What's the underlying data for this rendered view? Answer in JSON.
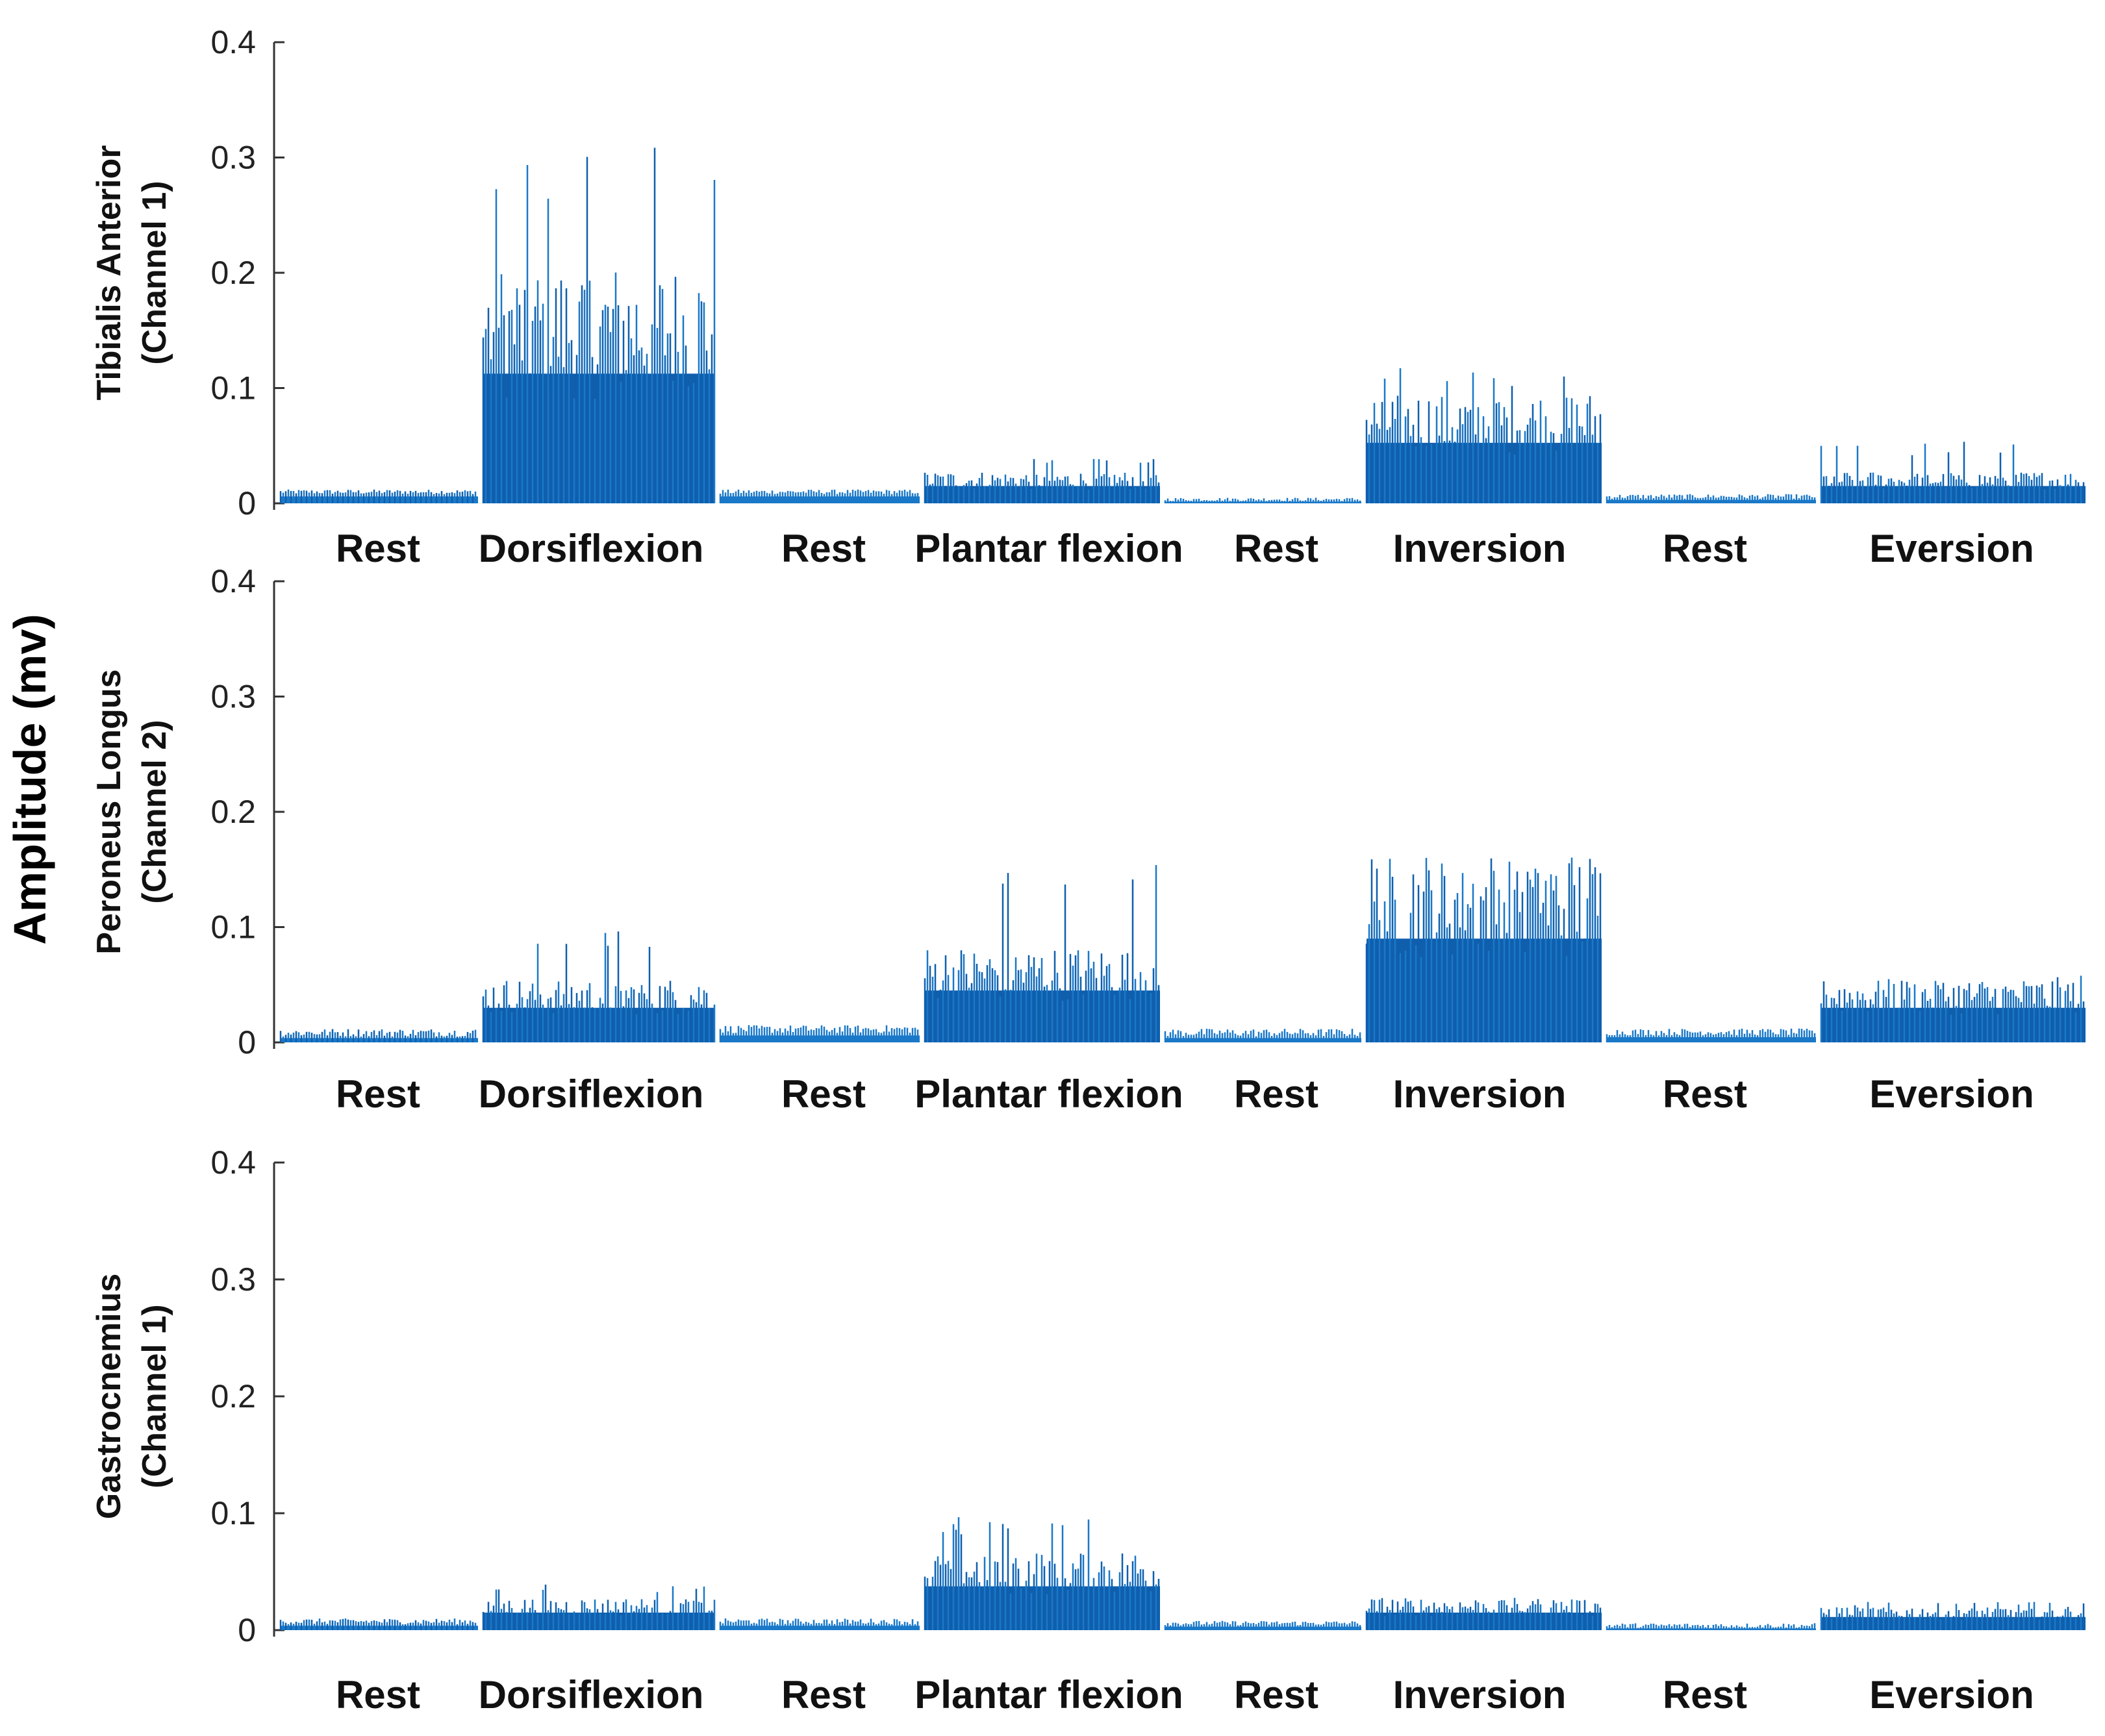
{
  "global_ylabel": "Amplitude (mv)",
  "colors": {
    "signal": "#1a78c8",
    "signal_dark": "#0f5fad",
    "axis": "#333333"
  },
  "chart_data": [
    {
      "type": "bar",
      "title": "",
      "ylabel_line1": "Tibialis Anterior",
      "ylabel_line2": "(Channel 1)",
      "ylim": [
        0,
        0.4
      ],
      "yticks": [
        "0",
        "0.1",
        "0.2",
        "0.3",
        "0.4"
      ],
      "ytick_values": [
        0,
        0.1,
        0.2,
        0.3,
        0.4
      ],
      "segments": [
        {
          "label": "Rest",
          "mean": 0.008,
          "peak": 0.012
        },
        {
          "label": "Dorsiflexion",
          "mean": 0.15,
          "peak": 0.33
        },
        {
          "label": "Rest",
          "mean": 0.008,
          "peak": 0.012
        },
        {
          "label": "Plantar flexion",
          "mean": 0.02,
          "peak": 0.04
        },
        {
          "label": "Rest",
          "mean": 0.002,
          "peak": 0.005
        },
        {
          "label": "Inversion",
          "mean": 0.07,
          "peak": 0.118
        },
        {
          "label": "Rest",
          "mean": 0.004,
          "peak": 0.008
        },
        {
          "label": "Eversion",
          "mean": 0.02,
          "peak": 0.055
        }
      ]
    },
    {
      "type": "bar",
      "title": "",
      "ylabel_line1": "Peroneus Longus",
      "ylabel_line2": "(Channel 2)",
      "ylim": [
        0,
        0.4
      ],
      "yticks": [
        "0",
        "0.1",
        "0.2",
        "0.3",
        "0.4"
      ],
      "ytick_values": [
        0,
        0.1,
        0.2,
        0.3,
        0.4
      ],
      "segments": [
        {
          "label": "Rest",
          "mean": 0.005,
          "peak": 0.012
        },
        {
          "label": "Dorsiflexion",
          "mean": 0.04,
          "peak": 0.1
        },
        {
          "label": "Rest",
          "mean": 0.008,
          "peak": 0.015
        },
        {
          "label": "Plantar flexion",
          "mean": 0.06,
          "peak": 0.165
        },
        {
          "label": "Rest",
          "mean": 0.005,
          "peak": 0.012
        },
        {
          "label": "Inversion",
          "mean": 0.12,
          "peak": 0.16
        },
        {
          "label": "Rest",
          "mean": 0.006,
          "peak": 0.012
        },
        {
          "label": "Eversion",
          "mean": 0.04,
          "peak": 0.06
        }
      ]
    },
    {
      "type": "bar",
      "title": "",
      "ylabel_line1": "Gastrocnemius",
      "ylabel_line2": "(Channel 1)",
      "ylim": [
        0,
        0.4
      ],
      "yticks": [
        "0",
        "0.1",
        "0.2",
        "0.3",
        "0.4"
      ],
      "ytick_values": [
        0,
        0.1,
        0.2,
        0.3,
        0.4
      ],
      "segments": [
        {
          "label": "Rest",
          "mean": 0.005,
          "peak": 0.01
        },
        {
          "label": "Dorsiflexion",
          "mean": 0.02,
          "peak": 0.04
        },
        {
          "label": "Rest",
          "mean": 0.005,
          "peak": 0.01
        },
        {
          "label": "Plantar flexion",
          "mean": 0.05,
          "peak": 0.1
        },
        {
          "label": "Rest",
          "mean": 0.004,
          "peak": 0.008
        },
        {
          "label": "Inversion",
          "mean": 0.02,
          "peak": 0.028
        },
        {
          "label": "Rest",
          "mean": 0.002,
          "peak": 0.006
        },
        {
          "label": "Eversion",
          "mean": 0.015,
          "peak": 0.025
        }
      ]
    }
  ]
}
